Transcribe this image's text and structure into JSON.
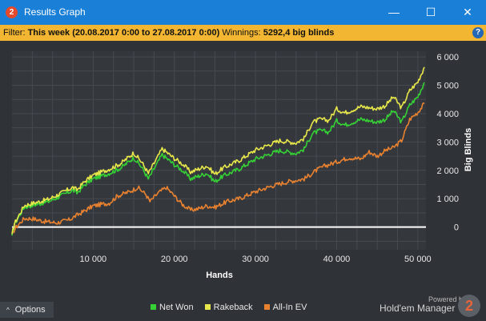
{
  "window": {
    "title": "Results Graph",
    "app_icon_text": "2",
    "controls": {
      "minimize": "—",
      "maximize": "☐",
      "close": "✕"
    }
  },
  "filter": {
    "label": "Filter:",
    "value": "This week (20.08.2017 0:00 to 27.08.2017 0:00)",
    "winnings_label": "Winnings:",
    "winnings_value": "5292,4 big blinds",
    "help_icon": "?"
  },
  "footer": {
    "options_chevron": "^",
    "options_label": "Options",
    "powered_by": "Powered by",
    "brand": "Hold'em Manager",
    "brand_logo": "2"
  },
  "colors": {
    "net_won": "#35d135",
    "rakeback": "#e8e84a",
    "all_in_ev": "#e88230",
    "zero_line": "#ffffff",
    "grid": "#464a51",
    "plot_bg": "#34373c"
  },
  "chart_data": {
    "type": "line",
    "title": "",
    "xlabel": "Hands",
    "ylabel": "Big Blinds",
    "xlim": [
      0,
      51000
    ],
    "ylim": [
      -800,
      6200
    ],
    "grid": true,
    "legend_position": "bottom",
    "x_ticks": [
      10000,
      20000,
      30000,
      40000,
      50000
    ],
    "x_tick_labels": [
      "10 000",
      "20 000",
      "30 000",
      "40 000",
      "50 000"
    ],
    "y_ticks": [
      0,
      1000,
      2000,
      3000,
      4000,
      5000,
      6000
    ],
    "y_tick_labels": [
      "0",
      "1 000",
      "2 000",
      "3 000",
      "4 000",
      "5 000",
      "6 000"
    ],
    "series": [
      {
        "name": "Net Won",
        "color": "#35d135",
        "x": [
          0,
          300,
          1500,
          3000,
          4500,
          6000,
          7500,
          8000,
          9000,
          10000,
          12000,
          13500,
          15000,
          16000,
          16800,
          18000,
          18500,
          20000,
          21000,
          22000,
          24000,
          25000,
          26000,
          28000,
          30000,
          31000,
          33000,
          34000,
          35000,
          36000,
          37000,
          38000,
          39000,
          40000,
          41000,
          42000,
          43000,
          44000,
          45000,
          46000,
          47000,
          48000,
          49000,
          50000,
          50800
        ],
        "y": [
          -300,
          100,
          700,
          800,
          900,
          1100,
          1300,
          1200,
          1500,
          1700,
          1900,
          2100,
          2450,
          2100,
          1700,
          2300,
          2550,
          2200,
          2000,
          1700,
          1900,
          1600,
          1800,
          2050,
          2400,
          2500,
          2700,
          2650,
          2600,
          2750,
          3300,
          3400,
          3350,
          3750,
          3600,
          3700,
          3800,
          3750,
          3700,
          3800,
          4100,
          3700,
          4300,
          4600,
          5100
        ]
      },
      {
        "name": "Rakeback",
        "color": "#e8e84a",
        "x": [
          0,
          300,
          1500,
          3000,
          4500,
          6000,
          7500,
          8000,
          9000,
          10000,
          12000,
          13500,
          15000,
          16000,
          16800,
          18000,
          18500,
          20000,
          21000,
          22000,
          24000,
          25000,
          26000,
          28000,
          30000,
          31000,
          33000,
          34000,
          35000,
          36000,
          37000,
          38000,
          39000,
          40000,
          41000,
          42000,
          43000,
          44000,
          45000,
          46000,
          47000,
          48000,
          49000,
          50000,
          50800
        ],
        "y": [
          -250,
          120,
          760,
          870,
          980,
          1190,
          1400,
          1310,
          1620,
          1830,
          2050,
          2260,
          2620,
          2280,
          1890,
          2500,
          2760,
          2420,
          2230,
          1940,
          2160,
          1870,
          2080,
          2350,
          2720,
          2830,
          3050,
          3010,
          2970,
          3130,
          3690,
          3800,
          3760,
          4170,
          4030,
          4140,
          4250,
          4210,
          4170,
          4280,
          4590,
          4200,
          4810,
          5120,
          5640
        ]
      },
      {
        "name": "All-In EV",
        "color": "#e88230",
        "x": [
          0,
          500,
          1500,
          2500,
          4000,
          5500,
          7000,
          8500,
          10000,
          12000,
          13000,
          14500,
          15500,
          16500,
          17000,
          18000,
          19000,
          20000,
          21000,
          22000,
          23000,
          24000,
          25000,
          26500,
          28000,
          30000,
          32000,
          34000,
          36000,
          37500,
          38500,
          40000,
          41500,
          43000,
          44000,
          45000,
          46000,
          47000,
          48000,
          49000,
          50000,
          50800
        ],
        "y": [
          -250,
          0,
          300,
          300,
          200,
          150,
          250,
          500,
          750,
          850,
          1100,
          1250,
          1400,
          1150,
          900,
          1200,
          1400,
          1100,
          800,
          600,
          650,
          750,
          700,
          900,
          1000,
          1250,
          1450,
          1600,
          1700,
          2000,
          2150,
          2300,
          2450,
          2400,
          2650,
          2500,
          2700,
          2800,
          3050,
          3800,
          4050,
          4350
        ]
      }
    ]
  }
}
